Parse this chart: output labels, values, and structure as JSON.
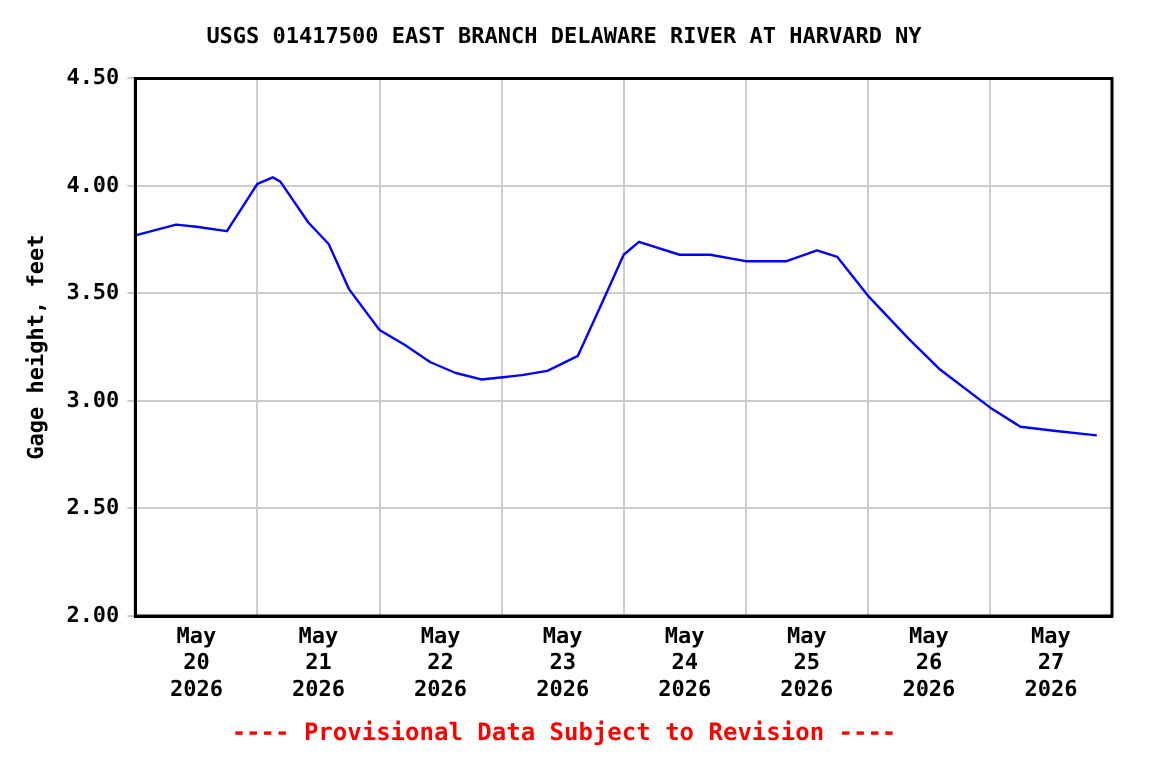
{
  "chart_data": {
    "type": "line",
    "title": "USGS 01417500 EAST BRANCH DELAWARE RIVER AT HARVARD NY",
    "ylabel": "Gage height, feet",
    "annotations": [
      "---- Provisional Data Subject to Revision ----"
    ],
    "x": [
      "2026-05-20T00:00",
      "2026-05-20T08:00",
      "2026-05-20T12:00",
      "2026-05-20T18:00",
      "2026-05-21T00:00",
      "2026-05-21T03:00",
      "2026-05-21T04:30",
      "2026-05-21T10:00",
      "2026-05-21T14:00",
      "2026-05-21T18:00",
      "2026-05-22T00:00",
      "2026-05-22T05:00",
      "2026-05-22T10:00",
      "2026-05-22T15:00",
      "2026-05-22T20:00",
      "2026-05-23T04:00",
      "2026-05-23T09:00",
      "2026-05-23T15:00",
      "2026-05-23T20:00",
      "2026-05-24T00:00",
      "2026-05-24T03:00",
      "2026-05-24T11:00",
      "2026-05-24T17:00",
      "2026-05-25T00:00",
      "2026-05-25T08:00",
      "2026-05-25T14:00",
      "2026-05-25T18:00",
      "2026-05-26T00:00",
      "2026-05-26T08:00",
      "2026-05-26T14:00",
      "2026-05-27T00:00",
      "2026-05-27T06:00",
      "2026-05-27T13:00",
      "2026-05-27T21:00"
    ],
    "series": [
      {
        "color": "#0000ff",
        "values": [
          3.77,
          3.82,
          3.81,
          3.79,
          4.01,
          4.04,
          4.02,
          3.83,
          3.73,
          3.52,
          3.33,
          3.26,
          3.18,
          3.13,
          3.1,
          3.12,
          3.14,
          3.21,
          3.47,
          3.68,
          3.74,
          3.68,
          3.68,
          3.65,
          3.65,
          3.7,
          3.67,
          3.49,
          3.29,
          3.15,
          2.97,
          2.88,
          2.86,
          2.84
        ]
      }
    ],
    "xlim": [
      "2026-05-20T00:00",
      "2026-05-28T00:00"
    ],
    "xticks": [
      {
        "value": "2026-05-20T12:00",
        "label": "May\n20\n2026"
      },
      {
        "value": "2026-05-21T00:00",
        "label": null
      },
      {
        "value": "2026-05-21T12:00",
        "label": "May\n21\n2026"
      },
      {
        "value": "2026-05-22T00:00",
        "label": null
      },
      {
        "value": "2026-05-22T12:00",
        "label": "May\n22\n2026"
      },
      {
        "value": "2026-05-23T00:00",
        "label": null
      },
      {
        "value": "2026-05-23T12:00",
        "label": "May\n23\n2026"
      },
      {
        "value": "2026-05-24T00:00",
        "label": null
      },
      {
        "value": "2026-05-24T12:00",
        "label": "May\n24\n2026"
      },
      {
        "value": "2026-05-25T00:00",
        "label": null
      },
      {
        "value": "2026-05-25T12:00",
        "label": "May\n25\n2026"
      },
      {
        "value": "2026-05-26T00:00",
        "label": null
      },
      {
        "value": "2026-05-26T12:00",
        "label": "May\n26\n2026"
      },
      {
        "value": "2026-05-27T00:00",
        "label": null
      },
      {
        "value": "2026-05-27T12:00",
        "label": "May\n27\n2026"
      }
    ],
    "ylim": [
      2.0,
      4.5
    ],
    "yticks": [
      {
        "value": 2.0,
        "label": "2.00"
      },
      {
        "value": 2.5,
        "label": "2.50"
      },
      {
        "value": 3.0,
        "label": "3.00"
      },
      {
        "value": 3.5,
        "label": "3.50"
      },
      {
        "value": 4.0,
        "label": "4.00"
      },
      {
        "value": 4.5,
        "label": "4.50"
      }
    ],
    "grid": true,
    "legend": false,
    "marker": "none",
    "line_style": "solid"
  }
}
